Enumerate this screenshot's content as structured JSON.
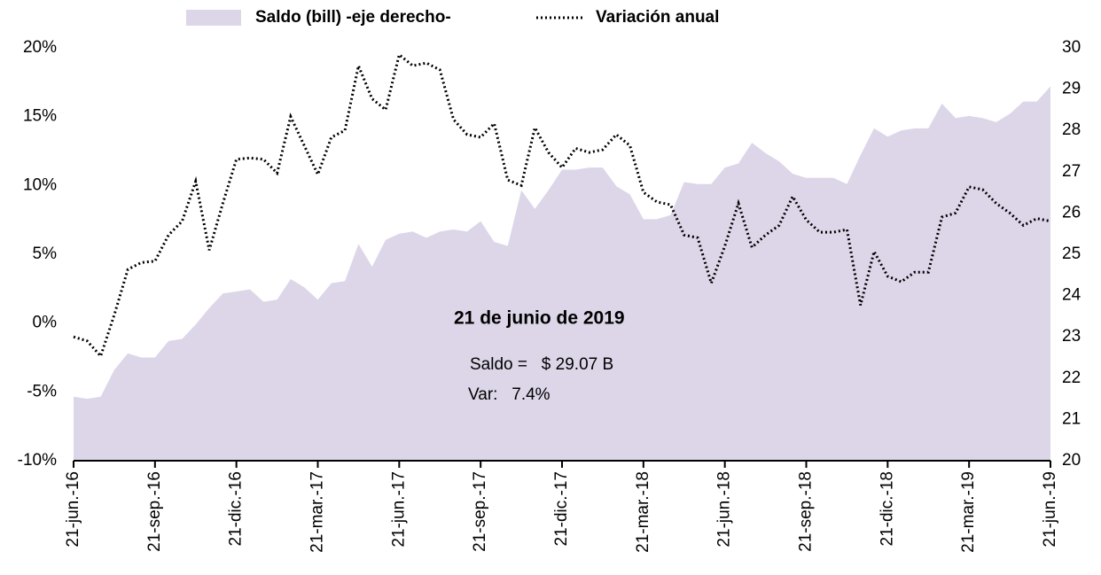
{
  "chart_data": {
    "type": "area-line",
    "categories": [
      "21-jun.-16",
      null,
      null,
      null,
      null,
      null,
      "21-sep.-16",
      null,
      null,
      null,
      null,
      null,
      "21-dic.-16",
      null,
      null,
      null,
      null,
      null,
      "21-mar.-17",
      null,
      null,
      null,
      null,
      null,
      "21-jun.-17",
      null,
      null,
      null,
      null,
      null,
      "21-sep.-17",
      null,
      null,
      null,
      null,
      null,
      "21-dic.-17",
      null,
      null,
      null,
      null,
      null,
      "21-mar.-18",
      null,
      null,
      null,
      null,
      null,
      "21-jun.-18",
      null,
      null,
      null,
      null,
      null,
      "21-sep.-18",
      null,
      null,
      null,
      null,
      null,
      "21-dic.-18",
      null,
      null,
      null,
      null,
      null,
      "21-mar.-19",
      null,
      null,
      null,
      null,
      null,
      "21-jun.-19"
    ],
    "series": [
      {
        "name": "Saldo (bill) -eje derecho-",
        "color": "#dcd6e8",
        "axis": "y2",
        "values": [
          21.55,
          21.5,
          21.55,
          22.2,
          22.6,
          22.5,
          22.5,
          22.9,
          22.95,
          23.3,
          23.7,
          24.05,
          24.1,
          24.15,
          23.85,
          23.9,
          24.4,
          24.2,
          23.9,
          24.3,
          24.35,
          25.25,
          24.7,
          25.35,
          25.5,
          25.55,
          25.4,
          25.55,
          25.6,
          25.55,
          25.8,
          25.3,
          25.2,
          26.55,
          26.1,
          26.55,
          27.05,
          27.05,
          27.1,
          27.1,
          26.65,
          26.45,
          25.85,
          25.85,
          25.95,
          26.75,
          26.7,
          26.7,
          27.1,
          27.2,
          27.7,
          27.45,
          27.25,
          26.95,
          26.85,
          26.85,
          26.85,
          26.7,
          27.4,
          28.05,
          27.85,
          28.0,
          28.05,
          28.05,
          28.65,
          28.3,
          28.35,
          28.3,
          28.2,
          28.4,
          28.7,
          28.7,
          29.07
        ]
      },
      {
        "name": "Variación anual",
        "color": "#000000",
        "values": [
          -1.0,
          -1.3,
          -2.4,
          0.6,
          3.9,
          4.4,
          4.5,
          6.4,
          7.4,
          10.3,
          5.3,
          8.7,
          11.9,
          12.0,
          11.9,
          10.9,
          15.0,
          12.9,
          10.8,
          13.5,
          14.0,
          18.7,
          16.3,
          15.5,
          19.5,
          18.7,
          18.9,
          18.4,
          14.8,
          13.7,
          13.5,
          14.5,
          10.4,
          10.0,
          14.2,
          12.4,
          11.3,
          12.7,
          12.4,
          12.6,
          13.7,
          12.9,
          9.5,
          8.8,
          8.6,
          6.4,
          6.2,
          2.9,
          5.6,
          8.7,
          5.5,
          6.4,
          7.1,
          9.2,
          7.5,
          6.6,
          6.6,
          6.8,
          1.3,
          5.2,
          3.4,
          3.0,
          3.7,
          3.7,
          7.7,
          8.0,
          9.9,
          9.7,
          8.7,
          8.0,
          7.1,
          7.6,
          7.4
        ]
      }
    ],
    "ylim": [
      -10,
      20
    ],
    "yticks": [
      {
        "value": -10,
        "label": "-10%"
      },
      {
        "value": -5,
        "label": "-5%"
      },
      {
        "value": 0,
        "label": "0%"
      },
      {
        "value": 5,
        "label": "5%"
      },
      {
        "value": 10,
        "label": "10%"
      },
      {
        "value": 15,
        "label": "15%"
      },
      {
        "value": 20,
        "label": "20%"
      }
    ],
    "y2lim": [
      20,
      30
    ],
    "y2ticks": [
      20,
      21,
      22,
      23,
      24,
      25,
      26,
      27,
      28,
      29,
      30
    ],
    "annotations": [
      "21 de junio de 2019",
      "Saldo =   $ 29.07 B",
      "Var:   7.4%"
    ],
    "grid": false
  }
}
